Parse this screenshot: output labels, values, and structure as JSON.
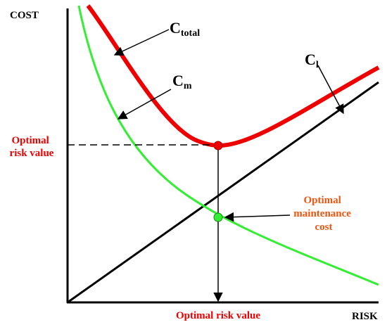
{
  "axes": {
    "y_label": "COST",
    "x_label": "RISK"
  },
  "curves": {
    "total": {
      "name_main": "C",
      "name_sub": "total",
      "color": "#ee0000"
    },
    "maintenance": {
      "name_main": "C",
      "name_sub": "m",
      "color": "#33ee33"
    },
    "loss": {
      "name_main": "C",
      "name_sub": "l",
      "color": "#000000"
    }
  },
  "annotations": {
    "optimal_risk_value_left": [
      "Optimal",
      "risk value"
    ],
    "optimal_maintenance_cost": [
      "Optimal",
      "maintenance",
      "cost"
    ],
    "optimal_risk_value_bottom": "Optimal risk value"
  },
  "colors": {
    "red_label": "#ee0000",
    "orange_label": "#ee5511",
    "optimum_point_fill": "#ee0000",
    "intersection_point_fill": "#33ee33"
  }
}
